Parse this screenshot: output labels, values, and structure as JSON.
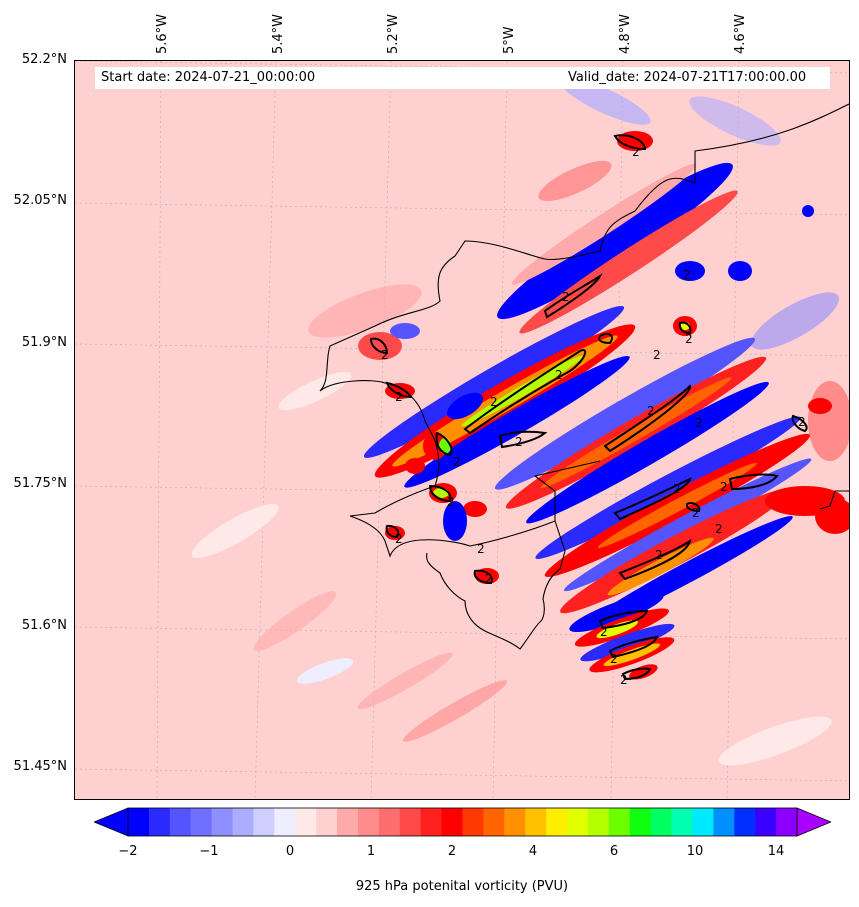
{
  "header": {
    "start_date": "Start date: 2024-07-21_00:00:00",
    "valid_date": "Valid_date: 2024-07-21T17:00:00.00"
  },
  "map": {
    "background_color": "#ffd0d0",
    "contour_label": "2",
    "latitude_labels": [
      "52.2°N",
      "52.05°N",
      "51.9°N",
      "51.75°N",
      "51.6°N",
      "51.45°N"
    ],
    "longitude_labels": [
      "5.6°W",
      "5.4°W",
      "5.2°W",
      "5°W",
      "4.8°W",
      "4.6°W"
    ]
  },
  "colorbar": {
    "label": "925 hPa potenital vorticity (PVU)",
    "tick_labels": [
      "−2",
      "−1",
      "0",
      "1",
      "2",
      "4",
      "6",
      "10",
      "14"
    ],
    "colors": [
      "#0000ff",
      "#2a2aff",
      "#5555ff",
      "#7070ff",
      "#8f8fff",
      "#adadff",
      "#cfcfff",
      "#eeeeff",
      "#ffe8e8",
      "#ffd0d0",
      "#ffaaaa",
      "#ff8c8c",
      "#ff6e6e",
      "#ff4a4a",
      "#ff2020",
      "#ff0000",
      "#ff3a00",
      "#ff6400",
      "#ff9100",
      "#ffc000",
      "#ffee00",
      "#e2ff00",
      "#b4ff00",
      "#6cff00",
      "#10ff10",
      "#00ff60",
      "#00ffb0",
      "#00eaff",
      "#0090ff",
      "#0030ff",
      "#3a00ff",
      "#8c00ff"
    ],
    "under_color": "#0000ff",
    "over_color": "#aa00ff"
  }
}
